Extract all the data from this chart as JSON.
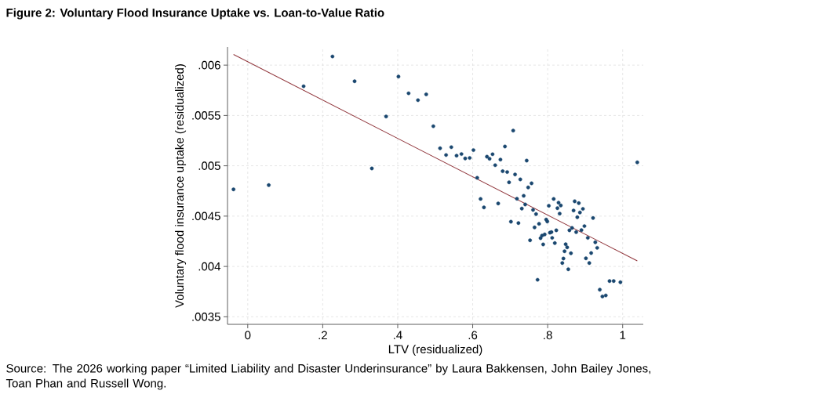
{
  "chart_data": {
    "type": "scatter",
    "title": "Figure 2: Voluntary Flood Insurance Uptake vs. Loan-to-Value Ratio",
    "xlabel": "LTV (residualized)",
    "ylabel": "Voluntary flood insurance uptake (residualized)",
    "annotations": [
      "Source: The 2026 working paper “Limited Liability and Disaster Underinsurance” by Laura Bakkensen, John Bailey Jones, Toan Phan and Russell Wong."
    ],
    "xlim": [
      -0.054,
      1.055
    ],
    "ylim": [
      0.003425,
      0.00618
    ],
    "xticks": [
      0,
      {
        "value": 0.2,
        "label": ".2"
      },
      {
        "value": 0.4,
        "label": ".4"
      },
      {
        "value": 0.6,
        "label": ".6"
      },
      {
        "value": 0.8,
        "label": ".8"
      },
      1
    ],
    "yticks": [
      {
        "value": 0.0035,
        "label": ".0035"
      },
      {
        "value": 0.004,
        "label": ".004"
      },
      {
        "value": 0.0045,
        "label": ".0045"
      },
      {
        "value": 0.005,
        "label": ".005"
      },
      {
        "value": 0.0055,
        "label": ".0055"
      },
      {
        "value": 0.006,
        "label": ".006"
      }
    ],
    "grid": true,
    "series": [
      {
        "type": "line",
        "color": "#90353b",
        "line_style": "solid",
        "marker": "none",
        "x": [
          -0.038,
          1.039
        ],
        "values": [
          0.006106,
          0.004055
        ]
      },
      {
        "color": "#1a476f",
        "marker": "circle",
        "x": [
          -0.038,
          0.056,
          0.149,
          0.226,
          0.285,
          0.331,
          0.369,
          0.402,
          0.429,
          0.454,
          0.476,
          0.495,
          0.708,
          0.513,
          0.543,
          0.529,
          0.557,
          0.57,
          0.58,
          0.592,
          0.602,
          0.612,
          0.621,
          0.63,
          0.638,
          0.645,
          0.653,
          0.66,
          0.668,
          0.674,
          0.68,
          0.686,
          0.692,
          0.697,
          0.702,
          0.713,
          0.718,
          0.722,
          0.727,
          0.731,
          0.736,
          0.74,
          0.744,
          0.748,
          0.753,
          0.757,
          0.761,
          0.765,
          0.769,
          0.773,
          0.777,
          0.781,
          0.785,
          0.788,
          0.792,
          0.796,
          0.799,
          0.803,
          0.806,
          0.81,
          0.812,
          0.816,
          0.819,
          0.823,
          0.826,
          0.829,
          0.832,
          0.835,
          0.839,
          0.842,
          0.845,
          0.848,
          0.852,
          0.855,
          0.858,
          0.862,
          0.865,
          0.869,
          0.872,
          0.876,
          0.879,
          0.883,
          0.886,
          0.89,
          0.894,
          0.898,
          0.902,
          0.907,
          0.911,
          0.916,
          0.921,
          0.927,
          0.932,
          0.939,
          0.946,
          0.955,
          0.965,
          0.976,
          0.994,
          1.039
        ],
        "values": [
          0.004766,
          0.004808,
          0.00579,
          0.006086,
          0.00584,
          0.004974,
          0.00549,
          0.005886,
          0.00572,
          0.005652,
          0.00571,
          0.005393,
          0.00535,
          0.005174,
          0.005185,
          0.005107,
          0.005101,
          0.005117,
          0.005073,
          0.005078,
          0.005156,
          0.004881,
          0.004671,
          0.004587,
          0.005091,
          0.00507,
          0.005115,
          0.005006,
          0.004626,
          0.005062,
          0.004946,
          0.005192,
          0.004938,
          0.004836,
          0.004445,
          0.004914,
          0.004673,
          0.004431,
          0.004865,
          0.004575,
          0.004702,
          0.004616,
          0.005052,
          0.004785,
          0.00426,
          0.004826,
          0.004562,
          0.004388,
          0.00452,
          0.003868,
          0.004424,
          0.004281,
          0.004307,
          0.004219,
          0.004318,
          0.004466,
          0.004447,
          0.004603,
          0.004336,
          0.004341,
          0.004284,
          0.004671,
          0.004232,
          0.004359,
          0.004579,
          0.004634,
          0.004525,
          0.004606,
          0.004034,
          0.004079,
          0.004151,
          0.004221,
          0.00419,
          0.003972,
          0.004359,
          0.004131,
          0.004383,
          0.004556,
          0.004647,
          0.004341,
          0.004489,
          0.004629,
          0.004536,
          0.004361,
          0.004572,
          0.004401,
          0.004081,
          0.004284,
          0.004034,
          0.004133,
          0.004481,
          0.00424,
          0.004185,
          0.003769,
          0.003702,
          0.003712,
          0.003855,
          0.003855,
          0.003843,
          0.005034
        ]
      }
    ]
  }
}
